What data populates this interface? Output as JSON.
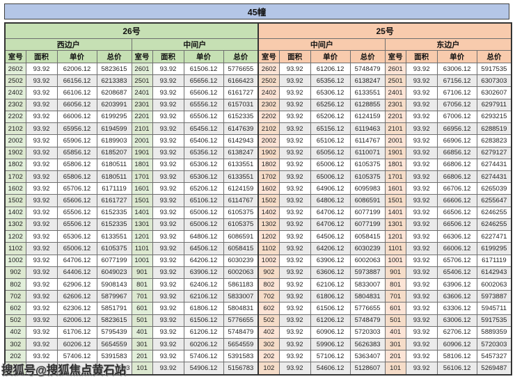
{
  "watermark": "搜狐号@搜狐焦点黄石站",
  "chart_data": {
    "type": "table",
    "title": "45幢",
    "sections": [
      {
        "name": "26号",
        "theme_color": "#c6e0b4",
        "room_col_color": "#e2efda",
        "unit_types": [
          "西边户",
          "中间户"
        ]
      },
      {
        "name": "25号",
        "theme_color": "#f8cbad",
        "room_col_color": "#fce4d6",
        "unit_types": [
          "中间户",
          "东边户"
        ]
      }
    ],
    "title_bar_color": "#b4c6e7",
    "column_headers": [
      "室号",
      "面积",
      "单价",
      "总价"
    ],
    "rows": [
      [
        "2602",
        "93.92",
        "62006.12",
        "5823615",
        "2601",
        "93.92",
        "61506.12",
        "5776655",
        "2602",
        "93.92",
        "61206.12",
        "5748479",
        "2601",
        "93.92",
        "63006.12",
        "5917535"
      ],
      [
        "2502",
        "93.92",
        "66156.12",
        "6213383",
        "2501",
        "93.92",
        "65656.12",
        "6166423",
        "2502",
        "93.92",
        "65356.12",
        "6138247",
        "2501",
        "93.92",
        "67156.12",
        "6307303"
      ],
      [
        "2402",
        "93.92",
        "66106.12",
        "6208687",
        "2401",
        "93.92",
        "65606.12",
        "6161727",
        "2402",
        "93.92",
        "65306.12",
        "6133551",
        "2401",
        "93.92",
        "67106.12",
        "6302607"
      ],
      [
        "2302",
        "93.92",
        "66056.12",
        "6203991",
        "2301",
        "93.92",
        "65556.12",
        "6157031",
        "2302",
        "93.92",
        "65256.12",
        "6128855",
        "2301",
        "93.92",
        "67056.12",
        "6297911"
      ],
      [
        "2202",
        "93.92",
        "66006.12",
        "6199295",
        "2201",
        "93.92",
        "65506.12",
        "6152335",
        "2202",
        "93.92",
        "65206.12",
        "6124159",
        "2201",
        "93.92",
        "67006.12",
        "6293215"
      ],
      [
        "2102",
        "93.92",
        "65956.12",
        "6194599",
        "2101",
        "93.92",
        "65456.12",
        "6147639",
        "2102",
        "93.92",
        "65156.12",
        "6119463",
        "2101",
        "93.92",
        "66956.12",
        "6288519"
      ],
      [
        "2002",
        "93.92",
        "65906.12",
        "6189903",
        "2001",
        "93.92",
        "65406.12",
        "6142943",
        "2002",
        "93.92",
        "65106.12",
        "6114767",
        "2001",
        "93.92",
        "66906.12",
        "6283823"
      ],
      [
        "1902",
        "93.92",
        "65856.12",
        "6185207",
        "1901",
        "93.92",
        "65356.12",
        "6138247",
        "1902",
        "93.92",
        "65056.12",
        "6110071",
        "1901",
        "93.92",
        "66856.12",
        "6279127"
      ],
      [
        "1802",
        "93.92",
        "65806.12",
        "6180511",
        "1801",
        "93.92",
        "65306.12",
        "6133551",
        "1802",
        "93.92",
        "65006.12",
        "6105375",
        "1801",
        "93.92",
        "66806.12",
        "6274431"
      ],
      [
        "1702",
        "93.92",
        "65806.12",
        "6180511",
        "1701",
        "93.92",
        "65306.12",
        "6133551",
        "1702",
        "93.92",
        "65006.12",
        "6105375",
        "1701",
        "93.92",
        "66806.12",
        "6274431"
      ],
      [
        "1602",
        "93.92",
        "65706.12",
        "6171119",
        "1601",
        "93.92",
        "65206.12",
        "6124159",
        "1602",
        "93.92",
        "64906.12",
        "6095983",
        "1601",
        "93.92",
        "66706.12",
        "6265039"
      ],
      [
        "1502",
        "93.92",
        "65606.12",
        "6161727",
        "1501",
        "93.92",
        "65106.12",
        "6114767",
        "1502",
        "93.92",
        "64806.12",
        "6086591",
        "1501",
        "93.92",
        "66606.12",
        "6255647"
      ],
      [
        "1402",
        "93.92",
        "65506.12",
        "6152335",
        "1401",
        "93.92",
        "65006.12",
        "6105375",
        "1402",
        "93.92",
        "64706.12",
        "6077199",
        "1401",
        "93.92",
        "66506.12",
        "6246255"
      ],
      [
        "1302",
        "93.92",
        "65506.12",
        "6152335",
        "1301",
        "93.92",
        "65006.12",
        "6105375",
        "1302",
        "93.92",
        "64706.12",
        "6077199",
        "1301",
        "93.92",
        "66506.12",
        "6246255"
      ],
      [
        "1202",
        "93.92",
        "65306.12",
        "6133551",
        "1201",
        "93.92",
        "64806.12",
        "6086591",
        "1202",
        "93.92",
        "64506.12",
        "6058415",
        "1201",
        "93.92",
        "66306.12",
        "6227471"
      ],
      [
        "1102",
        "93.92",
        "65006.12",
        "6105375",
        "1101",
        "93.92",
        "64506.12",
        "6058415",
        "1102",
        "93.92",
        "64206.12",
        "6030239",
        "1101",
        "93.92",
        "66006.12",
        "6199295"
      ],
      [
        "1002",
        "93.92",
        "64706.12",
        "6077199",
        "1001",
        "93.92",
        "64206.12",
        "6030239",
        "1002",
        "93.92",
        "63906.12",
        "6002063",
        "1001",
        "93.92",
        "65706.12",
        "6171119"
      ],
      [
        "902",
        "93.92",
        "64406.12",
        "6049023",
        "901",
        "93.92",
        "63906.12",
        "6002063",
        "902",
        "93.92",
        "63606.12",
        "5973887",
        "901",
        "93.92",
        "65406.12",
        "6142943"
      ],
      [
        "802",
        "93.92",
        "62906.12",
        "5908143",
        "801",
        "93.92",
        "62406.12",
        "5861183",
        "802",
        "93.92",
        "62106.12",
        "5833007",
        "801",
        "93.92",
        "63906.12",
        "6002063"
      ],
      [
        "702",
        "93.92",
        "62606.12",
        "5879967",
        "701",
        "93.92",
        "62106.12",
        "5833007",
        "702",
        "93.92",
        "61806.12",
        "5804831",
        "701",
        "93.92",
        "63606.12",
        "5973887"
      ],
      [
        "602",
        "93.92",
        "62306.12",
        "5851791",
        "601",
        "93.92",
        "61806.12",
        "5804831",
        "602",
        "93.92",
        "61506.12",
        "5776655",
        "601",
        "93.92",
        "63306.12",
        "5945711"
      ],
      [
        "502",
        "93.92",
        "62006.12",
        "5823615",
        "501",
        "93.92",
        "61506.12",
        "5776655",
        "502",
        "93.92",
        "61206.12",
        "5748479",
        "501",
        "93.92",
        "63006.12",
        "5917535"
      ],
      [
        "402",
        "93.92",
        "61706.12",
        "5795439",
        "401",
        "93.92",
        "61206.12",
        "5748479",
        "402",
        "93.92",
        "60906.12",
        "5720303",
        "401",
        "93.92",
        "62706.12",
        "5889359"
      ],
      [
        "302",
        "93.92",
        "60206.12",
        "5654559",
        "301",
        "93.92",
        "60206.12",
        "5654559",
        "302",
        "93.92",
        "59906.12",
        "5626383",
        "301",
        "93.92",
        "60906.12",
        "5720303"
      ],
      [
        "202",
        "93.92",
        "57406.12",
        "5391583",
        "201",
        "93.92",
        "57406.12",
        "5391583",
        "202",
        "93.92",
        "57106.12",
        "5363407",
        "201",
        "93.92",
        "58106.12",
        "5457327"
      ],
      [
        "",
        "",
        "",
        "743",
        "101",
        "93.92",
        "54906.12",
        "5156783",
        "102",
        "93.92",
        "54606.12",
        "5128607",
        "101",
        "93.92",
        "56106.12",
        "5269487"
      ]
    ]
  }
}
